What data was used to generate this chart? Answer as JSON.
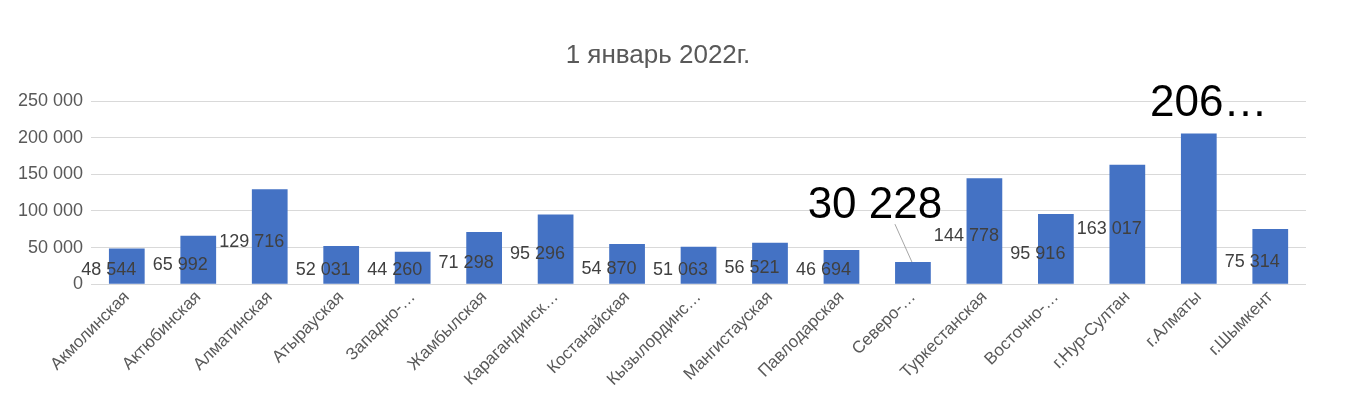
{
  "chart_data": {
    "type": "bar",
    "title": "1 январь 2022г.",
    "categories": [
      "Акмолинская",
      "Актюбинская",
      "Алматинская",
      "Атырауская",
      "Западно-…",
      "Жамбылская",
      "Карагандинск…",
      "Костанайская",
      "Кызылординс…",
      "Мангистауская",
      "Павлодарская",
      "Северо-…",
      "Туркестанская",
      "Восточно-…",
      "г.Нур-Султан",
      "г.Алматы",
      "г.Шымкент"
    ],
    "values": [
      48544,
      65992,
      129716,
      52031,
      44260,
      71298,
      95296,
      54870,
      51063,
      56521,
      46694,
      30228,
      144778,
      95916,
      163017,
      206000,
      75314
    ],
    "value_labels": [
      "48 544",
      "65 992",
      "129 716",
      "52 031",
      "44 260",
      "71 298",
      "95 296",
      "54 870",
      "51 063",
      "56 521",
      "46 694",
      "30 228",
      "144 778",
      "95 916",
      "163 017",
      "206…",
      "75 314"
    ],
    "color": "#4472c4",
    "ylim": [
      0,
      250000
    ],
    "yticks": [
      {
        "value": 0,
        "label": "0"
      },
      {
        "value": 50000,
        "label": "50 000"
      },
      {
        "value": 100000,
        "label": "100 000"
      },
      {
        "value": 150000,
        "label": "150 000"
      },
      {
        "value": 200000,
        "label": "200 000"
      },
      {
        "value": 250000,
        "label": "250 000"
      }
    ],
    "grid": "y"
  }
}
